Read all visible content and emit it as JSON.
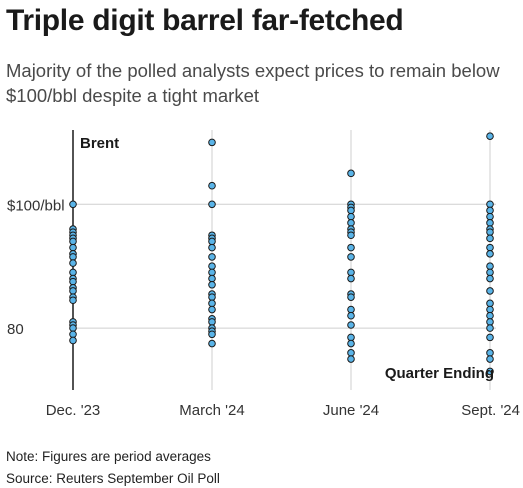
{
  "header": {
    "title": "Triple digit barrel far-fetched",
    "subtitle": "Majority of the polled analysts expect prices to remain below $100/bbl despite a tight market"
  },
  "chart_data": {
    "type": "scatter",
    "series_label": "Brent",
    "axis_annotation": "Quarter Ending",
    "categories": [
      "Dec. '23",
      "March '24",
      "June '24",
      "Sept. '24"
    ],
    "ylim": [
      70,
      112
    ],
    "yticks": [
      {
        "value": 100,
        "label": "$100/bbl"
      },
      {
        "value": 80,
        "label": "80"
      }
    ],
    "grid": true,
    "values": [
      [
        100,
        96,
        95.5,
        95,
        94.5,
        94,
        93,
        92,
        91.5,
        90.5,
        89,
        88,
        87.5,
        86.5,
        86,
        85,
        84.5,
        81,
        80.5,
        80,
        79,
        78
      ],
      [
        110,
        103,
        100,
        95,
        94.5,
        94,
        93,
        91.5,
        90,
        89,
        88,
        87,
        85.5,
        85,
        84,
        83,
        81.5,
        81,
        80,
        79.5,
        79,
        77.5
      ],
      [
        105,
        100,
        99.5,
        99,
        98,
        97,
        96,
        95.5,
        95,
        93,
        91.5,
        89,
        88,
        85.5,
        85,
        83,
        82,
        80.5,
        78.5,
        77.5,
        76,
        75
      ],
      [
        111,
        100,
        99,
        98,
        97,
        96,
        95.5,
        94.5,
        93,
        92,
        90,
        89,
        88,
        86,
        84,
        83,
        82,
        81,
        80,
        78.5,
        76,
        75,
        73
      ]
    ],
    "colors": {
      "point_fill": "#5ab4e8",
      "point_stroke": "#1a1a1a",
      "grid": "#cfcfcf",
      "axis": "#1a1a1a"
    }
  },
  "footer": {
    "note": "Note: Figures are period averages",
    "source": "Source: Reuters September Oil Poll"
  }
}
